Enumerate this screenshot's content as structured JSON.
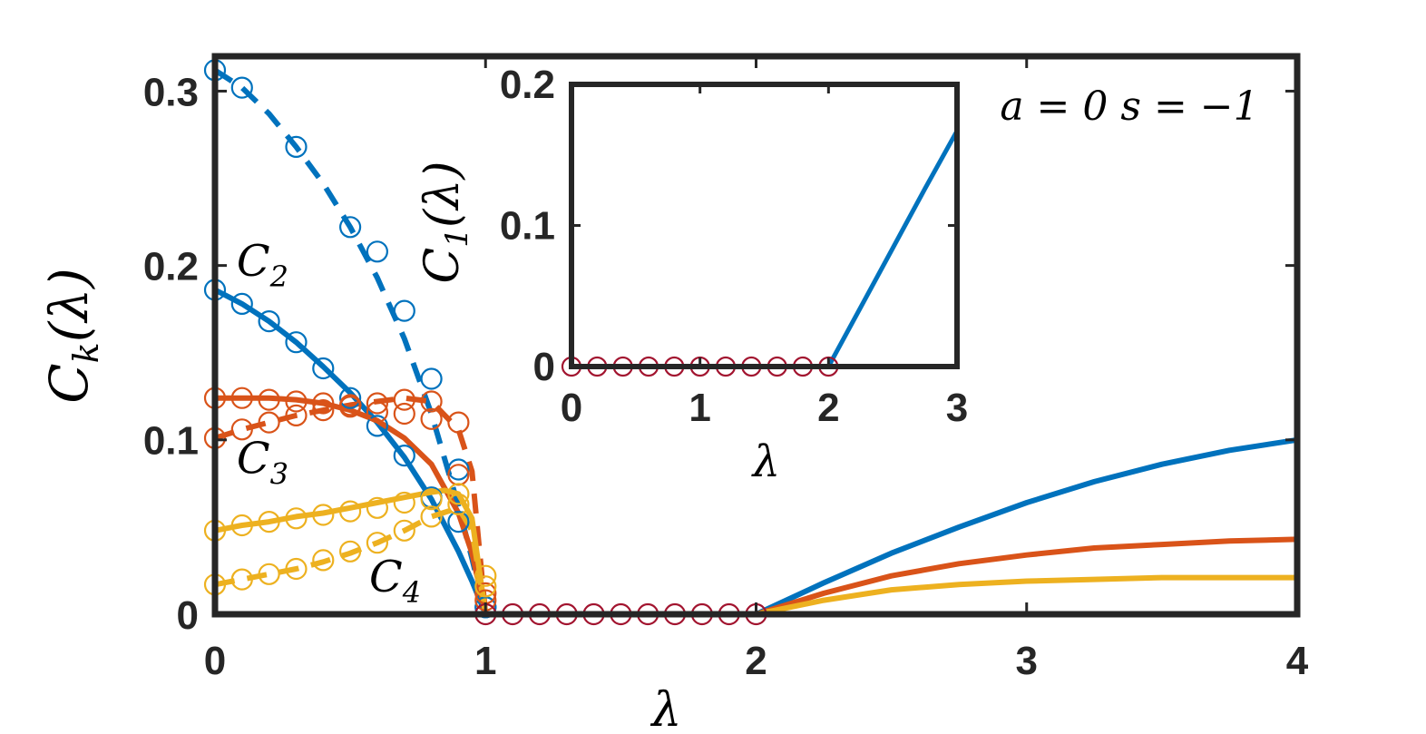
{
  "chart_data": [
    {
      "id": "main",
      "type": "line",
      "xlabel": "λ",
      "ylabel_base": "C",
      "ylabel_sub": "k",
      "ylabel_arg": "(λ)",
      "xlim": [
        0,
        4
      ],
      "ylim": [
        0,
        0.32
      ],
      "xticks": [
        0,
        1,
        2,
        3,
        4
      ],
      "xtick_labels": [
        "0",
        "1",
        "2",
        "3",
        "4"
      ],
      "yticks": [
        0,
        0.1,
        0.2,
        0.3
      ],
      "ytick_labels": [
        "0",
        "0.1",
        "0.2",
        "0.3"
      ],
      "grid": false,
      "colors": {
        "C1": "#0072BD",
        "C2": "#0072BD",
        "C3": "#D95319",
        "C4": "#EDB120",
        "zero": "#A2142F",
        "axis": "#262626"
      },
      "annotations": [
        {
          "base": "C",
          "sub": "2",
          "x": 0.08,
          "y": 0.194
        },
        {
          "base": "C",
          "sub": "3",
          "x": 0.08,
          "y": 0.081
        },
        {
          "base": "C",
          "sub": "4",
          "x": 0.57,
          "y": 0.013
        }
      ],
      "series": [
        {
          "key": "C1",
          "style": "dashed",
          "color": "#0072BD",
          "x": [
            0,
            0.1,
            0.2,
            0.3,
            0.4,
            0.5,
            0.6,
            0.7,
            0.8,
            0.9,
            0.95,
            1.0
          ],
          "y": [
            0.312,
            0.302,
            0.287,
            0.268,
            0.247,
            0.222,
            0.193,
            0.158,
            0.115,
            0.062,
            0.032,
            0.0
          ]
        },
        {
          "key": "C1-markers",
          "style": "markers",
          "color": "#0072BD",
          "x": [
            0,
            0.1,
            0.3,
            0.5,
            0.6,
            0.7,
            0.8,
            0.9,
            1.0
          ],
          "y": [
            0.312,
            0.302,
            0.268,
            0.222,
            0.208,
            0.174,
            0.135,
            0.083,
            0.004
          ]
        },
        {
          "key": "C2",
          "style": "solid",
          "color": "#0072BD",
          "x": [
            0,
            0.1,
            0.2,
            0.3,
            0.4,
            0.5,
            0.6,
            0.7,
            0.8,
            0.9,
            0.95,
            1.0
          ],
          "y": [
            0.186,
            0.178,
            0.168,
            0.156,
            0.142,
            0.127,
            0.11,
            0.09,
            0.066,
            0.036,
            0.019,
            0.0
          ]
        },
        {
          "key": "C2-markers",
          "style": "markers",
          "color": "#0072BD",
          "x": [
            0,
            0.1,
            0.2,
            0.3,
            0.4,
            0.5,
            0.6,
            0.7,
            0.8,
            0.9,
            1.0
          ],
          "y": [
            0.186,
            0.178,
            0.168,
            0.156,
            0.141,
            0.124,
            0.108,
            0.091,
            0.067,
            0.053,
            0.004
          ]
        },
        {
          "key": "C3-dashed",
          "style": "dashed",
          "color": "#D95319",
          "x": [
            0,
            0.1,
            0.2,
            0.3,
            0.4,
            0.5,
            0.6,
            0.7,
            0.8,
            0.9,
            0.95,
            1.0
          ],
          "y": [
            0.101,
            0.106,
            0.11,
            0.114,
            0.117,
            0.12,
            0.122,
            0.124,
            0.122,
            0.106,
            0.082,
            0.0
          ]
        },
        {
          "key": "C3-dashed-markers",
          "style": "markers",
          "color": "#D95319",
          "x": [
            0,
            0.1,
            0.2,
            0.3,
            0.4,
            0.5,
            0.6,
            0.7,
            0.8,
            0.9,
            1.0
          ],
          "y": [
            0.101,
            0.106,
            0.11,
            0.114,
            0.117,
            0.12,
            0.121,
            0.123,
            0.122,
            0.11,
            0.012
          ]
        },
        {
          "key": "C3",
          "style": "solid",
          "color": "#D95319",
          "x": [
            0,
            0.1,
            0.2,
            0.3,
            0.4,
            0.5,
            0.6,
            0.7,
            0.8,
            0.9,
            0.95,
            1.0
          ],
          "y": [
            0.124,
            0.124,
            0.124,
            0.123,
            0.121,
            0.117,
            0.111,
            0.101,
            0.086,
            0.058,
            0.035,
            0.0
          ]
        },
        {
          "key": "C3-markers",
          "style": "markers",
          "color": "#D95319",
          "x": [
            0,
            0.1,
            0.2,
            0.3,
            0.4,
            0.5,
            0.6,
            0.7,
            0.8,
            0.9,
            1.0
          ],
          "y": [
            0.124,
            0.124,
            0.123,
            0.122,
            0.121,
            0.119,
            0.116,
            0.115,
            0.112,
            0.08,
            0.008
          ]
        },
        {
          "key": "C4",
          "style": "solid",
          "color": "#EDB120",
          "x": [
            0,
            0.1,
            0.2,
            0.3,
            0.4,
            0.5,
            0.6,
            0.7,
            0.8,
            0.85,
            0.9,
            0.95,
            1.0
          ],
          "y": [
            0.048,
            0.051,
            0.053,
            0.056,
            0.058,
            0.061,
            0.064,
            0.067,
            0.07,
            0.071,
            0.069,
            0.055,
            0.0
          ]
        },
        {
          "key": "C4-markers",
          "style": "markers",
          "color": "#EDB120",
          "x": [
            0,
            0.1,
            0.2,
            0.3,
            0.4,
            0.5,
            0.6,
            0.7,
            0.8,
            0.9,
            1.0
          ],
          "y": [
            0.048,
            0.051,
            0.053,
            0.055,
            0.057,
            0.059,
            0.061,
            0.064,
            0.066,
            0.069,
            0.016
          ]
        },
        {
          "key": "C4-dashed",
          "style": "dashed",
          "color": "#EDB120",
          "x": [
            0,
            0.1,
            0.2,
            0.3,
            0.4,
            0.5,
            0.6,
            0.7,
            0.8,
            0.9,
            0.95,
            1.0
          ],
          "y": [
            0.017,
            0.02,
            0.023,
            0.026,
            0.03,
            0.035,
            0.041,
            0.048,
            0.056,
            0.061,
            0.048,
            0.0
          ]
        },
        {
          "key": "C4-dashed-markers",
          "style": "markers",
          "color": "#EDB120",
          "x": [
            0,
            0.1,
            0.2,
            0.3,
            0.4,
            0.5,
            0.6,
            0.7,
            0.8,
            0.9,
            1.0
          ],
          "y": [
            0.017,
            0.02,
            0.023,
            0.026,
            0.031,
            0.036,
            0.041,
            0.048,
            0.056,
            0.063,
            0.022
          ]
        },
        {
          "key": "C2-large",
          "style": "solid",
          "color": "#0072BD",
          "x": [
            2.0,
            2.25,
            2.5,
            2.75,
            3.0,
            3.25,
            3.5,
            3.75,
            4.0
          ],
          "y": [
            0.0,
            0.018,
            0.035,
            0.05,
            0.064,
            0.076,
            0.086,
            0.094,
            0.1
          ]
        },
        {
          "key": "C3-large",
          "style": "solid",
          "color": "#D95319",
          "x": [
            2.0,
            2.25,
            2.5,
            2.75,
            3.0,
            3.25,
            3.5,
            3.75,
            4.0
          ],
          "y": [
            0.0,
            0.012,
            0.022,
            0.029,
            0.034,
            0.038,
            0.04,
            0.042,
            0.043
          ]
        },
        {
          "key": "C4-large",
          "style": "solid",
          "color": "#EDB120",
          "x": [
            2.0,
            2.25,
            2.5,
            2.75,
            3.0,
            3.25,
            3.5,
            3.75,
            4.0
          ],
          "y": [
            0.0,
            0.008,
            0.014,
            0.017,
            0.019,
            0.02,
            0.021,
            0.021,
            0.021
          ]
        },
        {
          "key": "zero-line",
          "style": "solid",
          "color": "#A2142F",
          "x": [
            1.0,
            2.0
          ],
          "y": [
            0.0,
            0.0
          ]
        },
        {
          "key": "zero-markers",
          "style": "markers",
          "color": "#A2142F",
          "x": [
            1.0,
            1.1,
            1.2,
            1.3,
            1.4,
            1.5,
            1.6,
            1.7,
            1.8,
            1.9,
            2.0
          ],
          "y": [
            0,
            0,
            0,
            0,
            0,
            0,
            0,
            0,
            0,
            0,
            0
          ]
        }
      ]
    },
    {
      "id": "inset",
      "type": "line",
      "xlabel": "λ",
      "ylabel_base": "C",
      "ylabel_sub": "1",
      "ylabel_arg": "(λ)",
      "xlim": [
        0,
        3
      ],
      "ylim": [
        0,
        0.2
      ],
      "xticks": [
        0,
        1,
        2,
        3
      ],
      "xtick_labels": [
        "0",
        "1",
        "2",
        "3"
      ],
      "yticks": [
        0,
        0.1,
        0.2
      ],
      "ytick_labels": [
        "0",
        "0.1",
        "0.2"
      ],
      "grid": false,
      "series": [
        {
          "key": "inset-C1",
          "style": "solid",
          "color": "#0072BD",
          "x": [
            2.0,
            2.25,
            2.5,
            2.75,
            3.0
          ],
          "y": [
            0.0,
            0.042,
            0.084,
            0.126,
            0.167
          ]
        },
        {
          "key": "inset-zero",
          "style": "solid",
          "color": "#A2142F",
          "x": [
            0.0,
            2.0
          ],
          "y": [
            0.0,
            0.0
          ]
        },
        {
          "key": "inset-zero-markers",
          "style": "markers",
          "color": "#A2142F",
          "x": [
            0,
            0.2,
            0.4,
            0.6,
            0.8,
            1.0,
            1.2,
            1.4,
            1.6,
            1.8,
            2.0
          ],
          "y": [
            0,
            0,
            0,
            0,
            0,
            0,
            0,
            0,
            0,
            0,
            0
          ]
        }
      ]
    }
  ],
  "text": {
    "params": "a = 0  s = −1"
  }
}
